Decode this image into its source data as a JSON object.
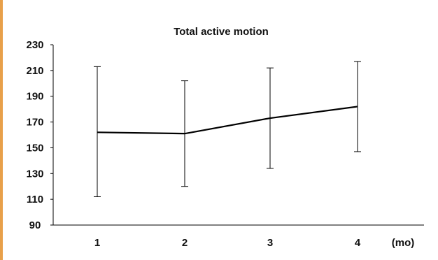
{
  "chart_data": {
    "type": "line",
    "title": "Total active motion",
    "x": [
      "1",
      "2",
      "3",
      "4"
    ],
    "x_unit": "(mo)",
    "y_ticks": [
      "230",
      "210",
      "190",
      "170",
      "150",
      "130",
      "110",
      "90"
    ],
    "ylim": [
      90,
      230
    ],
    "grid": false,
    "series": [
      {
        "values": [
          162,
          161,
          173,
          182
        ],
        "error_high": [
          213,
          202,
          212,
          217
        ],
        "error_low": [
          112,
          120,
          134,
          147
        ]
      }
    ],
    "colors": {
      "line": "#000000",
      "accent": "#e8a04a"
    }
  }
}
